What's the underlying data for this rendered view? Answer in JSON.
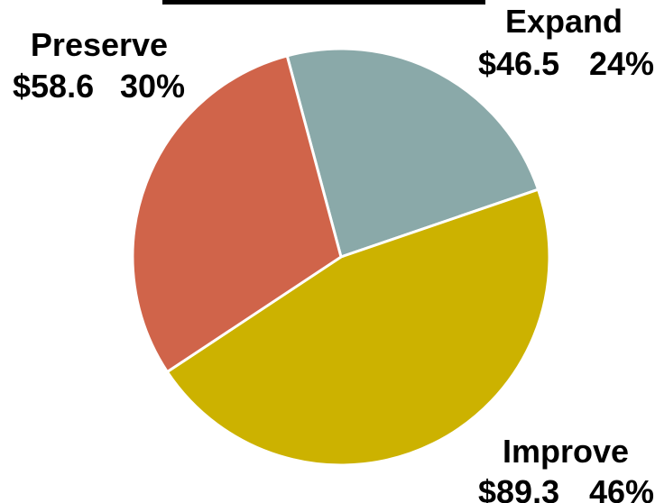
{
  "chart_data": {
    "type": "pie",
    "title": "",
    "slices": [
      {
        "name": "Expand",
        "value_label": "$46.5",
        "pct_label": "24%",
        "value": 46.5,
        "pct": 24,
        "color": "#8aa9a9"
      },
      {
        "name": "Improve",
        "value_label": "$89.3",
        "pct_label": "46%",
        "value": 89.3,
        "pct": 46,
        "color": "#ccb200"
      },
      {
        "name": "Preserve",
        "value_label": "$58.6",
        "pct_label": "30%",
        "value": 58.6,
        "pct": 30,
        "color": "#d0644a"
      }
    ]
  }
}
